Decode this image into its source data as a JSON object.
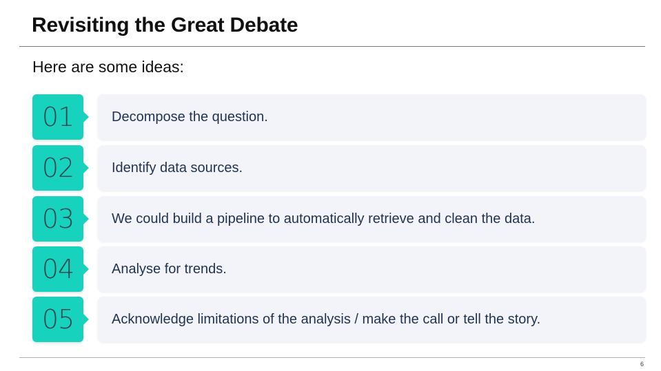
{
  "slide": {
    "title": "Revisiting the Great Debate",
    "intro": "Here are some ideas:",
    "items": [
      {
        "number": "01",
        "text": "Decompose the question."
      },
      {
        "number": "02",
        "text": "Identify data sources."
      },
      {
        "number": "03",
        "text": "We could build a pipeline to automatically retrieve and clean the data."
      },
      {
        "number": "04",
        "text": "Analyse for trends."
      },
      {
        "number": "05",
        "text": "Acknowledge limitations of the analysis / make the call or tell the story."
      }
    ],
    "page_number": "6"
  },
  "colors": {
    "accent": "#17d3bd",
    "number_text": "#2b4a52",
    "item_background": "#f2f4f9",
    "item_text": "#1f3350"
  }
}
